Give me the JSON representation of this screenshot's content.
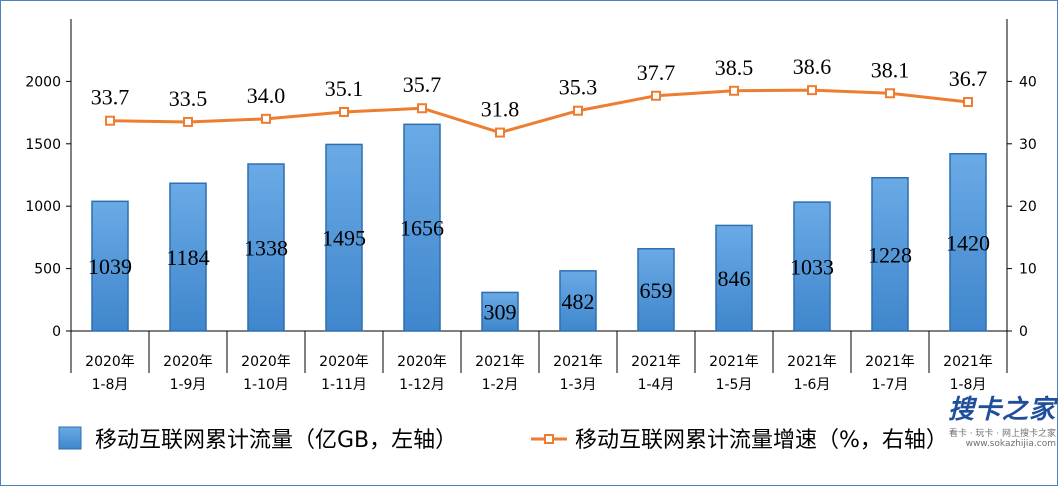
{
  "chart_data": {
    "type": "bar+line",
    "categories": [
      [
        "2020年",
        "1-8月"
      ],
      [
        "2020年",
        "1-9月"
      ],
      [
        "2020年",
        "1-10月"
      ],
      [
        "2020年",
        "1-11月"
      ],
      [
        "2020年",
        "1-12月"
      ],
      [
        "2021年",
        "1-2月"
      ],
      [
        "2021年",
        "1-3月"
      ],
      [
        "2021年",
        "1-4月"
      ],
      [
        "2021年",
        "1-5月"
      ],
      [
        "2021年",
        "1-6月"
      ],
      [
        "2021年",
        "1-7月"
      ],
      [
        "2021年",
        "1-8月"
      ]
    ],
    "series": [
      {
        "name": "移动互联网累计流量（亿GB，左轴）",
        "type": "bar",
        "axis": "left",
        "values": [
          1039,
          1184,
          1338,
          1495,
          1656,
          309,
          482,
          659,
          846,
          1033,
          1228,
          1420
        ],
        "color": "#5b9bd5"
      },
      {
        "name": "移动互联网累计流量增速（%，右轴）",
        "type": "line",
        "axis": "right",
        "values": [
          33.7,
          33.5,
          34.0,
          35.1,
          35.7,
          31.8,
          35.3,
          37.7,
          38.5,
          38.6,
          38.1,
          36.7
        ],
        "color": "#ed7d31"
      }
    ],
    "left_axis": {
      "ticks": [
        "0",
        "500",
        "1000",
        "1500",
        "2000"
      ],
      "range": [
        0,
        2500
      ]
    },
    "right_axis": {
      "ticks": [
        "0",
        "10",
        "20",
        "30",
        "40"
      ],
      "range": [
        0,
        50
      ]
    },
    "legend_position": "bottom",
    "grid": false
  },
  "watermark": {
    "brand": "搜卡之家",
    "tagline": "看卡 · 玩卡 · 网上搜卡之家",
    "url": "www.sokazhijia.com"
  }
}
